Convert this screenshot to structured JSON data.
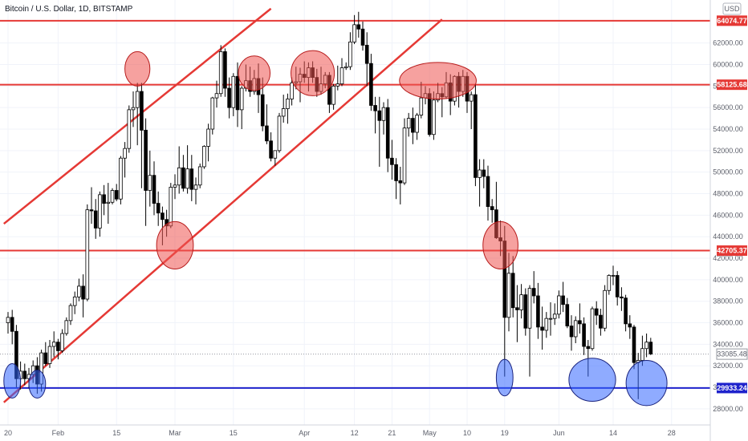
{
  "chart_data": {
    "type": "candlestick",
    "title": "Bitcoin / U.S. Dollar, 1D, BITSTAMP",
    "currency_badge": "USD",
    "grid": true,
    "y_axis_position": "right",
    "ylim": [
      26500,
      66000
    ],
    "y_ticks": [
      {
        "value": 28000,
        "label": "28000.00"
      },
      {
        "value": 30000,
        "label": "30000.00"
      },
      {
        "value": 32000,
        "label": "32000.00"
      },
      {
        "value": 34000,
        "label": "34000.00"
      },
      {
        "value": 36000,
        "label": "36000.00"
      },
      {
        "value": 38000,
        "label": "38000.00"
      },
      {
        "value": 40000,
        "label": "40000.00"
      },
      {
        "value": 42000,
        "label": "42000.00"
      },
      {
        "value": 44000,
        "label": "44000.00"
      },
      {
        "value": 46000,
        "label": "46000.00"
      },
      {
        "value": 48000,
        "label": "48000.00"
      },
      {
        "value": 50000,
        "label": "50000.00"
      },
      {
        "value": 52000,
        "label": "52000.00"
      },
      {
        "value": 54000,
        "label": "54000.00"
      },
      {
        "value": 56000,
        "label": "56000.00"
      },
      {
        "value": 58000,
        "label": "58000.00"
      },
      {
        "value": 60000,
        "label": "60000.00"
      },
      {
        "value": 62000,
        "label": "62000.00"
      }
    ],
    "x_ticks": [
      {
        "day": 0,
        "label": "20"
      },
      {
        "day": 12,
        "label": "Feb"
      },
      {
        "day": 26,
        "label": "15"
      },
      {
        "day": 40,
        "label": "Mar"
      },
      {
        "day": 54,
        "label": "15"
      },
      {
        "day": 71,
        "label": "Apr"
      },
      {
        "day": 83,
        "label": "12"
      },
      {
        "day": 92,
        "label": "21"
      },
      {
        "day": 101,
        "label": "May"
      },
      {
        "day": 110,
        "label": "10"
      },
      {
        "day": 119,
        "label": "19"
      },
      {
        "day": 132,
        "label": "Jun"
      },
      {
        "day": 145,
        "label": "14"
      },
      {
        "day": 159,
        "label": "28"
      }
    ],
    "horizontal_levels": [
      {
        "value": 64074.77,
        "label": "64074.77",
        "color": "#e53935"
      },
      {
        "value": 58125.68,
        "label": "58125.68",
        "color": "#e53935"
      },
      {
        "value": 42705.37,
        "label": "42705.37",
        "color": "#e53935"
      },
      {
        "value": 29933.24,
        "label": "29933.24",
        "color": "#1e22cc"
      }
    ],
    "current_price": {
      "value": 33085.48,
      "label": "33085.48"
    },
    "trend_lines": [
      {
        "from": [
          -1,
          45200
        ],
        "to": [
          63,
          65200
        ],
        "color": "#e53935"
      },
      {
        "from": [
          -1,
          28600
        ],
        "to": [
          104,
          64200
        ],
        "color": "#e53935"
      }
    ],
    "highlight_ellipses": [
      {
        "day": 31,
        "value": 59600,
        "rx_days": 3.0,
        "ry_value": 1600,
        "color": "red"
      },
      {
        "day": 40,
        "value": 43200,
        "rx_days": 4.4,
        "ry_value": 2200,
        "color": "red"
      },
      {
        "day": 59,
        "value": 59200,
        "rx_days": 3.8,
        "ry_value": 1600,
        "color": "red"
      },
      {
        "day": 73,
        "value": 59200,
        "rx_days": 5.2,
        "ry_value": 2100,
        "color": "red"
      },
      {
        "day": 103,
        "value": 58500,
        "rx_days": 9.2,
        "ry_value": 1700,
        "color": "red"
      },
      {
        "day": 118,
        "value": 43200,
        "rx_days": 4.2,
        "ry_value": 2200,
        "color": "red"
      },
      {
        "day": 1,
        "value": 30600,
        "rx_days": 2.0,
        "ry_value": 1600,
        "color": "blue"
      },
      {
        "day": 7,
        "value": 30300,
        "rx_days": 2.0,
        "ry_value": 1300,
        "color": "blue"
      },
      {
        "day": 119,
        "value": 30900,
        "rx_days": 2.0,
        "ry_value": 1700,
        "color": "blue"
      },
      {
        "day": 140,
        "value": 30700,
        "rx_days": 5.6,
        "ry_value": 2000,
        "color": "blue"
      },
      {
        "day": 153,
        "value": 30400,
        "rx_days": 4.9,
        "ry_value": 2100,
        "color": "blue"
      }
    ],
    "candles": [
      [
        0,
        36000,
        37000,
        35000,
        36500
      ],
      [
        1,
        36500,
        37200,
        34000,
        35200
      ],
      [
        2,
        35200,
        35800,
        30000,
        30800
      ],
      [
        3,
        30800,
        32400,
        29800,
        31500
      ],
      [
        4,
        31500,
        32200,
        30200,
        30800
      ],
      [
        5,
        30800,
        31800,
        29900,
        31200
      ],
      [
        6,
        31200,
        32500,
        30400,
        32000
      ],
      [
        7,
        32000,
        32800,
        29400,
        30300
      ],
      [
        8,
        30300,
        33500,
        29600,
        33200
      ],
      [
        9,
        33200,
        34200,
        32000,
        32200
      ],
      [
        10,
        32200,
        34400,
        31800,
        33800
      ],
      [
        11,
        33800,
        35200,
        32800,
        34200
      ],
      [
        12,
        34200,
        34500,
        32600,
        33400
      ],
      [
        13,
        33400,
        35400,
        33200,
        35000
      ],
      [
        14,
        35000,
        36500,
        34800,
        36200
      ],
      [
        15,
        36200,
        37800,
        35800,
        37600
      ],
      [
        16,
        37600,
        38900,
        36800,
        38400
      ],
      [
        17,
        38400,
        40100,
        38000,
        39400
      ],
      [
        18,
        39400,
        40500,
        36500,
        38200
      ],
      [
        19,
        38200,
        47000,
        38000,
        46500
      ],
      [
        20,
        46500,
        48600,
        45200,
        46400
      ],
      [
        21,
        46400,
        47500,
        43800,
        44800
      ],
      [
        22,
        44800,
        48200,
        44000,
        47900
      ],
      [
        23,
        47900,
        48800,
        46000,
        47100
      ],
      [
        24,
        47100,
        49000,
        45200,
        47200
      ],
      [
        25,
        47200,
        48500,
        47000,
        48300
      ],
      [
        26,
        48300,
        48900,
        47300,
        47500
      ],
      [
        27,
        47500,
        51500,
        47000,
        51300
      ],
      [
        28,
        51300,
        52800,
        49500,
        52200
      ],
      [
        29,
        52200,
        56200,
        51800,
        55800
      ],
      [
        30,
        55800,
        57500,
        54200,
        56000
      ],
      [
        31,
        56000,
        58300,
        52500,
        57500
      ],
      [
        32,
        57500,
        58300,
        48500,
        53900
      ],
      [
        33,
        53900,
        55000,
        45000,
        48300
      ],
      [
        34,
        48300,
        52000,
        46800,
        49700
      ],
      [
        35,
        49700,
        51000,
        46000,
        47100
      ],
      [
        36,
        47100,
        48200,
        45000,
        46200
      ],
      [
        37,
        46200,
        46800,
        43200,
        45600
      ],
      [
        38,
        45600,
        46500,
        44000,
        45000
      ],
      [
        39,
        45000,
        49000,
        44800,
        48600
      ],
      [
        40,
        48600,
        49800,
        47500,
        48800
      ],
      [
        41,
        48800,
        52400,
        48000,
        50400
      ],
      [
        42,
        50400,
        51600,
        48200,
        48500
      ],
      [
        43,
        48500,
        52500,
        48000,
        50300
      ],
      [
        44,
        50300,
        51600,
        47300,
        48400
      ],
      [
        45,
        48400,
        49500,
        47000,
        48800
      ],
      [
        46,
        48800,
        50800,
        48500,
        50500
      ],
      [
        47,
        50500,
        52500,
        50300,
        52400
      ],
      [
        48,
        52400,
        54500,
        51000,
        54000
      ],
      [
        49,
        54000,
        57000,
        53500,
        56900
      ],
      [
        50,
        56900,
        58500,
        56000,
        57300
      ],
      [
        51,
        57300,
        61800,
        57000,
        61200
      ],
      [
        52,
        61200,
        61500,
        57000,
        57800
      ],
      [
        53,
        57800,
        58800,
        55000,
        56000
      ],
      [
        54,
        56000,
        59200,
        55200,
        58900
      ],
      [
        55,
        58900,
        60200,
        54200,
        55800
      ],
      [
        56,
        55800,
        58000,
        54000,
        57800
      ],
      [
        57,
        57800,
        60000,
        57500,
        58500
      ],
      [
        58,
        58500,
        59800,
        57000,
        57500
      ],
      [
        59,
        57500,
        59500,
        57200,
        58700
      ],
      [
        60,
        58700,
        60100,
        55500,
        57200
      ],
      [
        61,
        57200,
        58800,
        53800,
        54300
      ],
      [
        62,
        54300,
        56300,
        52600,
        52900
      ],
      [
        63,
        52900,
        53700,
        51000,
        51300
      ],
      [
        64,
        51300,
        52000,
        50600,
        52000
      ],
      [
        65,
        52000,
        55500,
        51800,
        55200
      ],
      [
        66,
        55200,
        57200,
        54600,
        55900
      ],
      [
        67,
        55900,
        57300,
        54500,
        56800
      ],
      [
        68,
        56800,
        58800,
        56200,
        58300
      ],
      [
        69,
        58300,
        59800,
        57700,
        58400
      ],
      [
        70,
        58400,
        59700,
        56500,
        59100
      ],
      [
        71,
        59100,
        60300,
        58300,
        58800
      ],
      [
        72,
        58800,
        60200,
        57500,
        59700
      ],
      [
        73,
        59700,
        60300,
        58300,
        58800
      ],
      [
        74,
        58800,
        59600,
        57000,
        57500
      ],
      [
        75,
        57500,
        59800,
        57200,
        58200
      ],
      [
        76,
        58200,
        59300,
        57800,
        59000
      ],
      [
        77,
        59000,
        59300,
        55500,
        56300
      ],
      [
        78,
        56300,
        58200,
        55800,
        58000
      ],
      [
        79,
        58000,
        59900,
        57600,
        58200
      ],
      [
        80,
        58200,
        60600,
        58000,
        59700
      ],
      [
        81,
        59700,
        60200,
        59500,
        59800
      ],
      [
        82,
        59800,
        63000,
        59500,
        62100
      ],
      [
        83,
        62100,
        64600,
        61900,
        63700
      ],
      [
        84,
        63700,
        64900,
        62500,
        63300
      ],
      [
        85,
        63300,
        64000,
        61300,
        61800
      ],
      [
        86,
        61800,
        63000,
        58000,
        60100
      ],
      [
        87,
        60100,
        61000,
        55700,
        56200
      ],
      [
        88,
        56200,
        57000,
        53600,
        55700
      ],
      [
        89,
        55700,
        57000,
        50500,
        54800
      ],
      [
        90,
        54800,
        56500,
        53500,
        56000
      ],
      [
        91,
        56000,
        56800,
        50000,
        51300
      ],
      [
        92,
        51300,
        53000,
        49300,
        50700
      ],
      [
        93,
        50700,
        51300,
        47500,
        49200
      ],
      [
        94,
        49200,
        50500,
        47000,
        49000
      ],
      [
        95,
        49000,
        55000,
        48800,
        54100
      ],
      [
        96,
        54100,
        55500,
        53300,
        55000
      ],
      [
        97,
        55000,
        56000,
        52600,
        53700
      ],
      [
        98,
        53700,
        55500,
        53000,
        55300
      ],
      [
        99,
        55300,
        58400,
        55000,
        56900
      ],
      [
        100,
        56900,
        58000,
        56300,
        57300
      ],
      [
        101,
        57300,
        57800,
        53300,
        53500
      ],
      [
        102,
        53500,
        57500,
        53000,
        56700
      ],
      [
        103,
        56700,
        58300,
        56500,
        57300
      ],
      [
        104,
        57300,
        57900,
        55100,
        57000
      ],
      [
        105,
        57000,
        59300,
        56800,
        58300
      ],
      [
        106,
        58300,
        59100,
        55300,
        56600
      ],
      [
        107,
        56600,
        59000,
        56200,
        58900
      ],
      [
        108,
        58900,
        59300,
        56000,
        57500
      ],
      [
        109,
        57500,
        59500,
        57000,
        58900
      ],
      [
        110,
        58900,
        59300,
        55500,
        56600
      ],
      [
        111,
        56600,
        57500,
        54000,
        57200
      ],
      [
        112,
        57200,
        58200,
        48700,
        49500
      ],
      [
        113,
        49500,
        51200,
        46800,
        50200
      ],
      [
        114,
        50200,
        51200,
        48500,
        49600
      ],
      [
        115,
        49600,
        50600,
        45500,
        46800
      ],
      [
        116,
        46800,
        47500,
        45300,
        46500
      ],
      [
        117,
        46500,
        49100,
        43800,
        43900
      ],
      [
        118,
        43900,
        45500,
        42200,
        43600
      ],
      [
        119,
        43600,
        45000,
        31000,
        36500
      ],
      [
        120,
        36500,
        42500,
        35200,
        40600
      ],
      [
        121,
        40600,
        42200,
        36500,
        37400
      ],
      [
        122,
        37400,
        39500,
        34200,
        37200
      ],
      [
        123,
        37200,
        39600,
        36400,
        38600
      ],
      [
        124,
        38600,
        39200,
        34800,
        35500
      ],
      [
        125,
        35500,
        39500,
        31000,
        39200
      ],
      [
        126,
        39200,
        40800,
        37800,
        38500
      ],
      [
        127,
        38500,
        39700,
        34500,
        35600
      ],
      [
        128,
        35600,
        37500,
        33500,
        35300
      ],
      [
        129,
        35300,
        37000,
        34600,
        36400
      ],
      [
        130,
        36400,
        37900,
        34800,
        36400
      ],
      [
        131,
        36400,
        37800,
        35800,
        36800
      ],
      [
        132,
        36800,
        39000,
        36400,
        38500
      ],
      [
        133,
        38500,
        39800,
        37000,
        37700
      ],
      [
        134,
        37700,
        38300,
        35500,
        35700
      ],
      [
        135,
        35700,
        36700,
        33400,
        34700
      ],
      [
        136,
        34700,
        36600,
        34100,
        36200
      ],
      [
        137,
        36200,
        37800,
        35000,
        35900
      ],
      [
        138,
        35900,
        36500,
        33000,
        33800
      ],
      [
        139,
        33800,
        34400,
        31000,
        33600
      ],
      [
        140,
        33600,
        37500,
        33400,
        37300
      ],
      [
        141,
        37300,
        38000,
        35800,
        36700
      ],
      [
        142,
        36700,
        37300,
        34800,
        35500
      ],
      [
        143,
        35500,
        39500,
        35200,
        39000
      ],
      [
        144,
        39000,
        40500,
        38600,
        40400
      ],
      [
        145,
        40400,
        41300,
        39500,
        40400
      ],
      [
        146,
        40400,
        40800,
        37600,
        38400
      ],
      [
        147,
        38400,
        39300,
        37100,
        38300
      ],
      [
        148,
        38300,
        38600,
        35200,
        35900
      ],
      [
        149,
        35900,
        36700,
        34500,
        35600
      ],
      [
        150,
        35600,
        35800,
        31700,
        32300
      ],
      [
        151,
        32300,
        33200,
        28900,
        32500
      ],
      [
        152,
        32500,
        34800,
        32000,
        33600
      ],
      [
        153,
        33600,
        35000,
        32800,
        34200
      ],
      [
        154,
        34200,
        34600,
        33000,
        33100
      ]
    ]
  }
}
